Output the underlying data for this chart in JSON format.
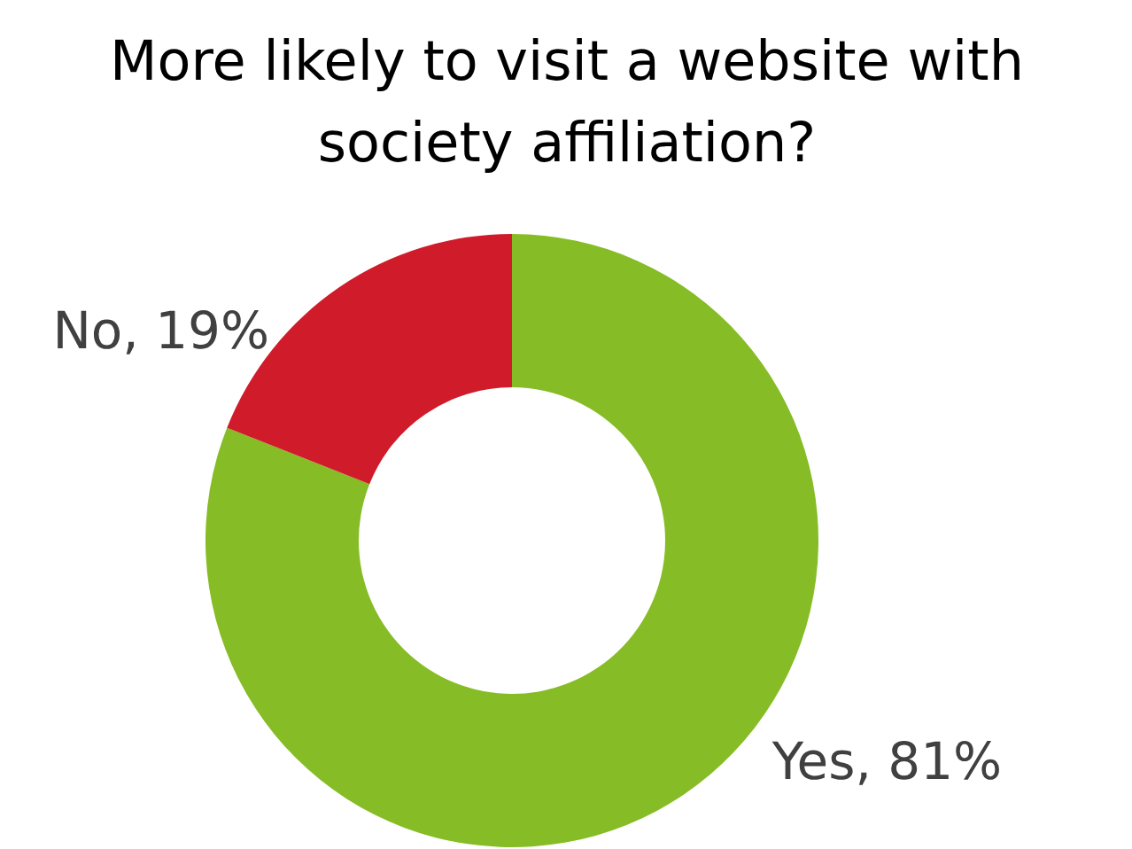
{
  "chart_data": {
    "type": "donut",
    "title": "More likely to visit a website with society affiliation?",
    "categories": [
      "Yes",
      "No"
    ],
    "values": [
      81,
      19
    ],
    "colors": [
      "#86bc25",
      "#d01c2a"
    ],
    "value_labels": [
      "81%",
      "19%"
    ]
  }
}
